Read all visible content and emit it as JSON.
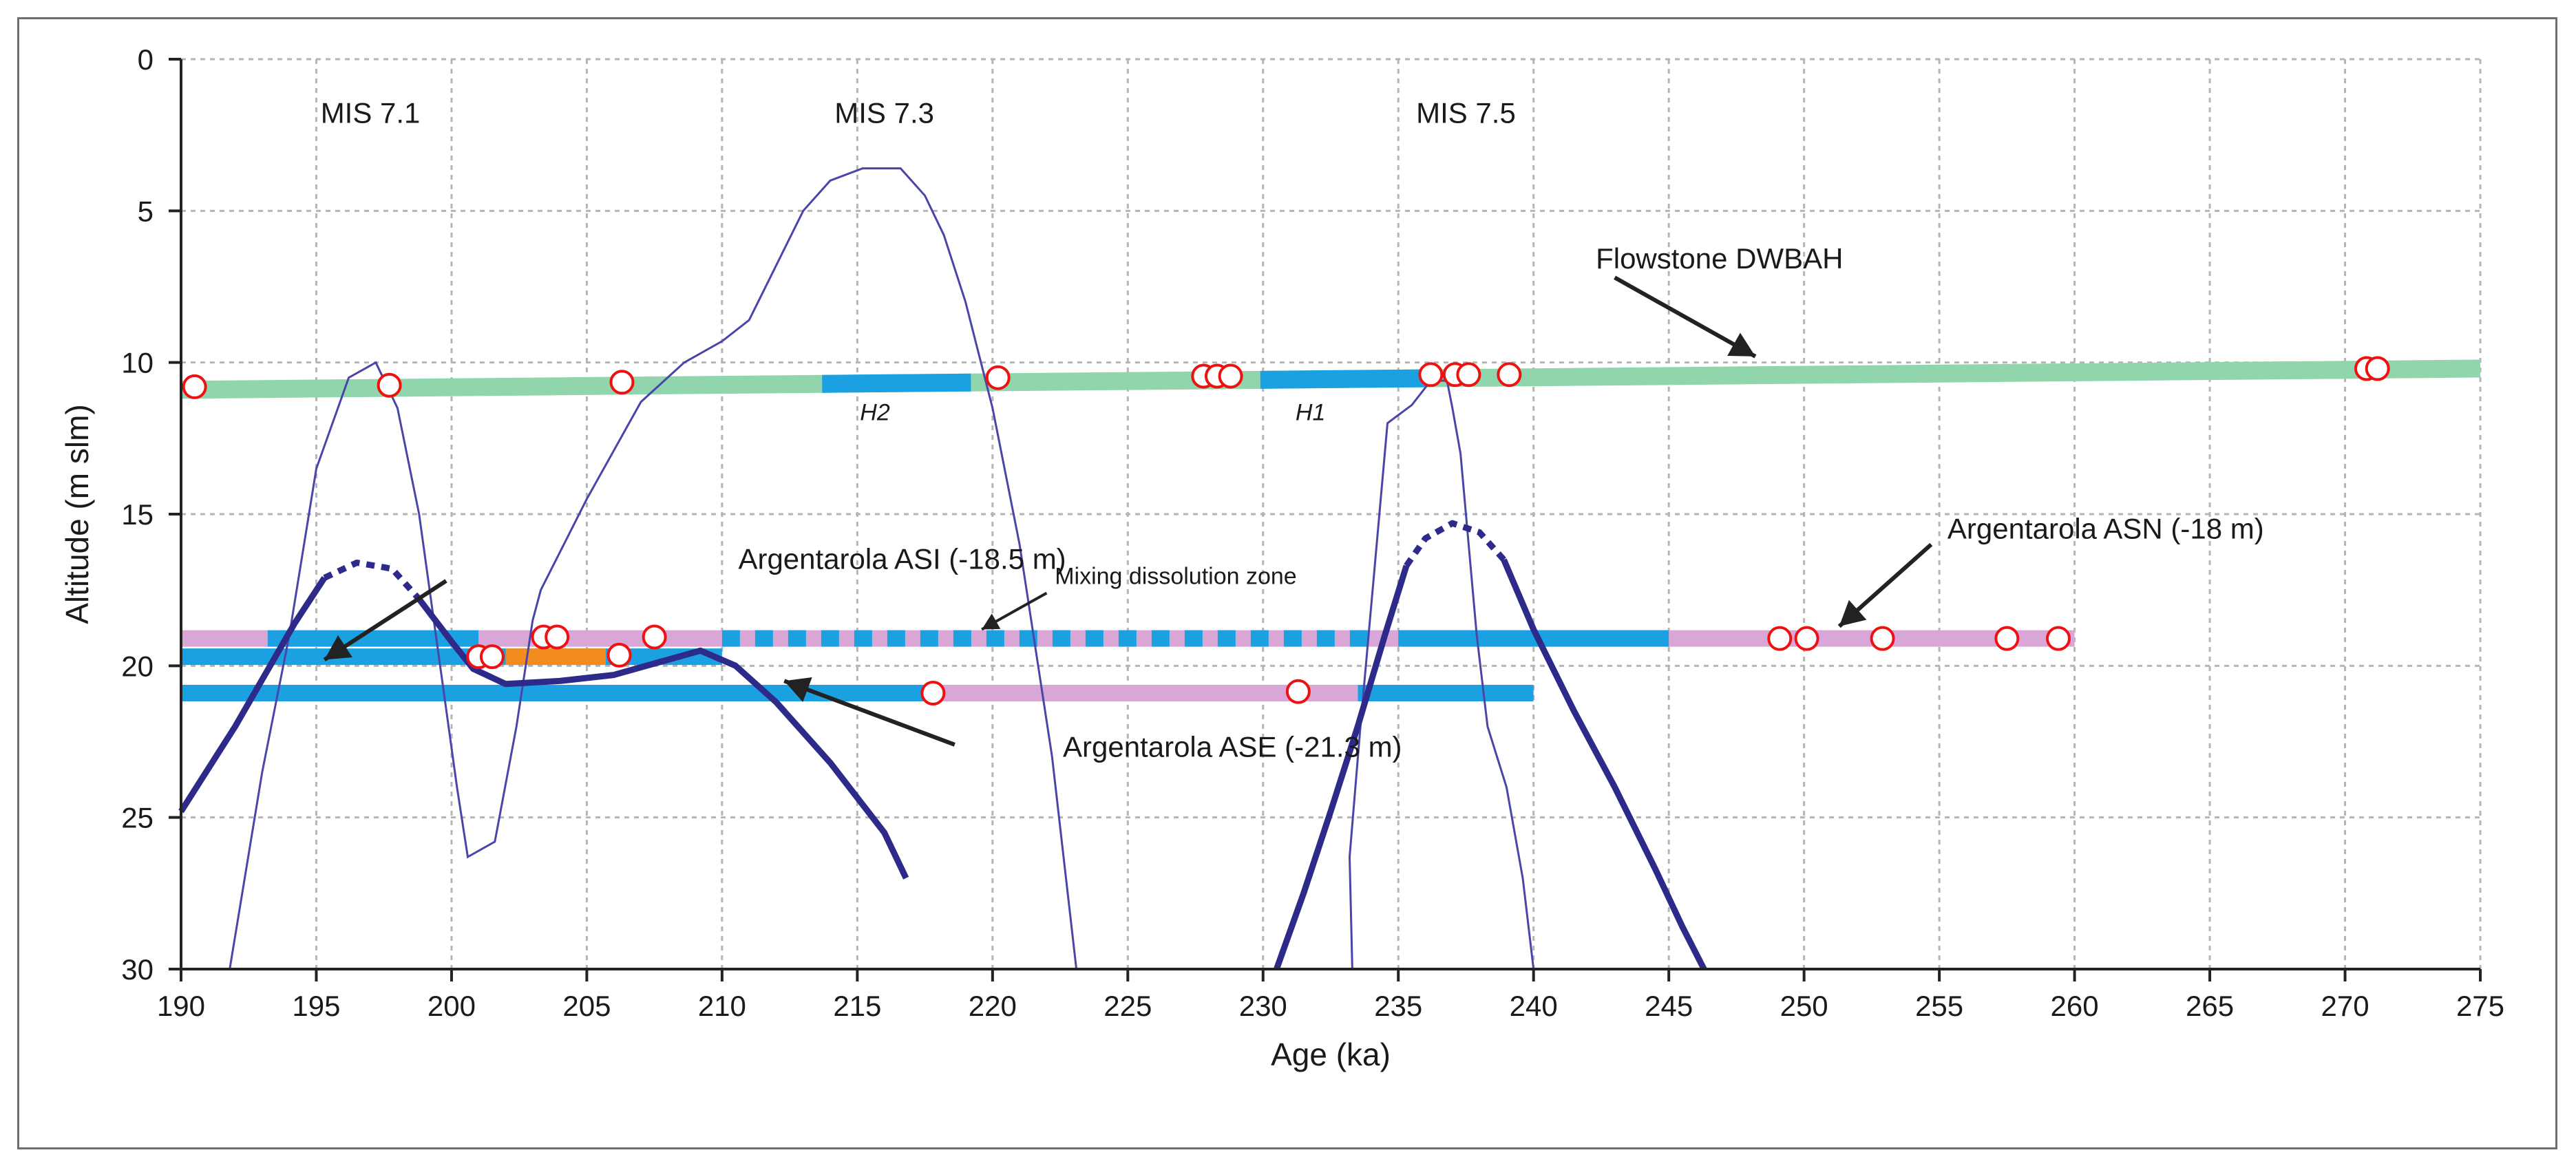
{
  "chart_data": {
    "type": "line",
    "title": "",
    "xlabel": "Age (ka)",
    "ylabel": "Altitude (m slm)",
    "xlim": [
      190,
      275
    ],
    "ylim": [
      30,
      0
    ],
    "y_inverted": true,
    "x_ticks": [
      190,
      195,
      200,
      205,
      210,
      215,
      220,
      225,
      230,
      235,
      240,
      245,
      250,
      255,
      260,
      265,
      270,
      275
    ],
    "y_ticks": [
      0,
      5,
      10,
      15,
      20,
      25,
      30
    ],
    "grid": true,
    "mis_labels": [
      {
        "text": "MIS 7.1",
        "x": 197,
        "y": 2.1
      },
      {
        "text": "MIS 7.3",
        "x": 216,
        "y": 2.1
      },
      {
        "text": "MIS 7.5",
        "x": 237.5,
        "y": 2.1
      }
    ],
    "sea_level_curve_thin": [
      [
        191.8,
        30
      ],
      [
        193,
        23.5
      ],
      [
        194,
        19
      ],
      [
        195,
        13.5
      ],
      [
        196.2,
        10.5
      ],
      [
        197.2,
        10
      ],
      [
        198,
        11.5
      ],
      [
        198.8,
        15
      ],
      [
        199.5,
        19.5
      ],
      [
        200.2,
        24
      ],
      [
        200.6,
        26.3
      ],
      [
        201.6,
        25.8
      ],
      [
        202.4,
        22
      ],
      [
        203,
        18.5
      ],
      [
        203.3,
        17.5
      ],
      [
        205,
        14.5
      ],
      [
        207,
        11.3
      ],
      [
        208.6,
        10
      ],
      [
        210,
        9.3
      ],
      [
        211,
        8.6
      ],
      [
        212,
        6.8
      ],
      [
        213,
        5
      ],
      [
        214,
        4
      ],
      [
        215.2,
        3.6
      ],
      [
        216.6,
        3.6
      ],
      [
        217.5,
        4.5
      ],
      [
        218.2,
        5.8
      ],
      [
        219,
        8
      ],
      [
        220,
        11.5
      ],
      [
        221,
        16
      ],
      [
        222.2,
        23
      ],
      [
        223.1,
        30
      ]
    ],
    "sea_level_curve_thin_2": [
      [
        233.3,
        30
      ],
      [
        233.2,
        26.3
      ],
      [
        233.6,
        22
      ],
      [
        234.1,
        17
      ],
      [
        234.6,
        12
      ],
      [
        235.5,
        11.4
      ],
      [
        236.2,
        10.6
      ],
      [
        236.8,
        10.6
      ],
      [
        237,
        11.5
      ],
      [
        237.3,
        13
      ],
      [
        237.6,
        16
      ],
      [
        237.9,
        19
      ],
      [
        238.3,
        22
      ],
      [
        239,
        24
      ],
      [
        239.6,
        27
      ],
      [
        240,
        30
      ]
    ],
    "sea_level_curve_thick": [
      {
        "points": [
          [
            190,
            24.8
          ],
          [
            192,
            22
          ],
          [
            194.2,
            18.6
          ],
          [
            195.3,
            17.1
          ]
        ],
        "dashed": false
      },
      {
        "points": [
          [
            195.3,
            17.1
          ],
          [
            196.5,
            16.6
          ],
          [
            197.8,
            16.8
          ],
          [
            198.8,
            17.8
          ]
        ],
        "dashed": true
      },
      {
        "points": [
          [
            198.8,
            17.8
          ],
          [
            200,
            19.2
          ],
          [
            200.8,
            20.1
          ],
          [
            202,
            20.6
          ],
          [
            204,
            20.5
          ],
          [
            206,
            20.3
          ],
          [
            208,
            19.8
          ],
          [
            209.2,
            19.5
          ],
          [
            210.5,
            20
          ],
          [
            212,
            21.2
          ],
          [
            214,
            23.2
          ],
          [
            216,
            25.5
          ],
          [
            216.8,
            27
          ]
        ],
        "dashed": false
      },
      {
        "points": [
          [
            230.5,
            30
          ],
          [
            231.5,
            27.5
          ],
          [
            232.5,
            24.8
          ],
          [
            233.5,
            22
          ],
          [
            234.5,
            19
          ],
          [
            235.3,
            16.7
          ]
        ],
        "dashed": false
      },
      {
        "points": [
          [
            235.3,
            16.7
          ],
          [
            236,
            15.8
          ],
          [
            237,
            15.3
          ],
          [
            238,
            15.6
          ],
          [
            238.9,
            16.5
          ]
        ],
        "dashed": true
      },
      {
        "points": [
          [
            238.9,
            16.5
          ],
          [
            240,
            18.8
          ],
          [
            241.5,
            21.5
          ],
          [
            243,
            24
          ],
          [
            244.5,
            26.7
          ],
          [
            245.5,
            28.6
          ],
          [
            246.3,
            30
          ]
        ],
        "dashed": false
      }
    ],
    "flowstone": {
      "name": "Flowstone DWBAH",
      "start": [
        190,
        10.9
      ],
      "end": [
        275,
        10.2
      ],
      "blue_segments": [
        {
          "x0": 213.7,
          "x1": 219.2,
          "label": "H2"
        },
        {
          "x0": 229.9,
          "x1": 236,
          "label": "H1"
        }
      ],
      "points": [
        [
          190.5,
          10.8
        ],
        [
          197.7,
          10.75
        ],
        [
          206.3,
          10.65
        ],
        [
          220.2,
          10.5
        ],
        [
          227.8,
          10.45
        ],
        [
          228.3,
          10.45
        ],
        [
          228.8,
          10.45
        ],
        [
          236.2,
          10.4
        ],
        [
          237.1,
          10.4
        ],
        [
          237.6,
          10.4
        ],
        [
          239.1,
          10.4
        ],
        [
          270.8,
          10.2
        ],
        [
          271.2,
          10.2
        ]
      ]
    },
    "asn": {
      "name": "Argentarola ASN (-18 m)",
      "y": 19.1,
      "pink_segments": [
        [
          190,
          193.2
        ],
        [
          201,
          260
        ]
      ],
      "blue_segments": [
        [
          193.2,
          201
        ],
        [
          235,
          245
        ]
      ],
      "dashed_blue": [
        [
          210,
          234.5
        ]
      ],
      "points": [
        [
          203.4,
          19.05
        ],
        [
          203.9,
          19.05
        ],
        [
          207.5,
          19.05
        ],
        [
          249.1,
          19.1
        ],
        [
          250.1,
          19.1
        ],
        [
          252.9,
          19.1
        ],
        [
          257.5,
          19.1
        ],
        [
          259.4,
          19.1
        ]
      ]
    },
    "asi": {
      "name": "Argentarola ASI (-18.5 m)",
      "y": 19.7,
      "blue_segments": [
        [
          190,
          210
        ]
      ],
      "orange_segments": [
        [
          202,
          205.7
        ]
      ],
      "points": [
        [
          201,
          19.7
        ],
        [
          201.5,
          19.7
        ],
        [
          206.2,
          19.65
        ]
      ]
    },
    "ase": {
      "name": "Argentarola ASE (-21.3 m)",
      "y": 20.9,
      "blue_segments": [
        [
          190,
          217.9
        ],
        [
          233.5,
          240
        ]
      ],
      "pink_segments": [
        [
          217.9,
          233.5
        ]
      ],
      "points": [
        [
          217.8,
          20.9
        ],
        [
          231.3,
          20.85
        ]
      ]
    },
    "annotations": [
      {
        "text": "Flowstone DWBAH",
        "x": 242.3,
        "y": 6.9
      },
      {
        "text": "Argentarola ASN (-18 m)",
        "x": 255.3,
        "y": 15.8
      },
      {
        "text": "Argentarola ASI (-18.5 m)",
        "x": 210.6,
        "y": 16.8
      },
      {
        "text": "Mixing dissolution zone",
        "x": 222.3,
        "y": 17.3
      },
      {
        "text": "Argentarola ASE (-21.3 m)",
        "x": 222.6,
        "y": 23
      }
    ]
  },
  "colors": {
    "flowstone": "#90d5ac",
    "blue_band": "#1ba1e2",
    "pink_band": "#d9a6d8",
    "orange_band": "#f28c1e",
    "thick_curve": "#2e2a8a",
    "thin_curve": "#4a45a8",
    "marker_stroke": "#ee1111",
    "grid": "#b5b5b5",
    "axis": "#222222",
    "arrow": "#222222"
  }
}
